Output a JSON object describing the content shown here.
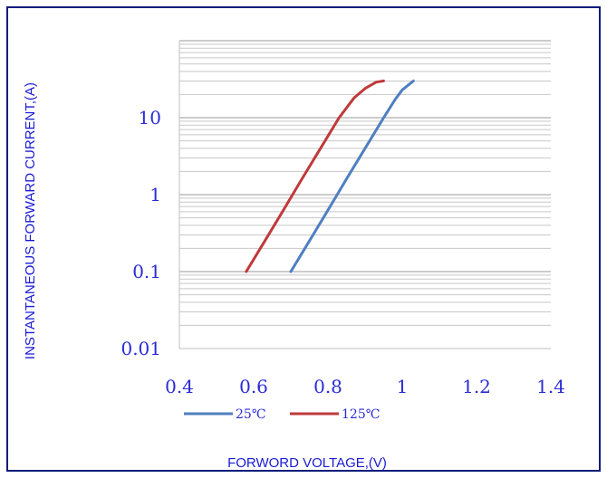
{
  "chart_data": {
    "type": "line",
    "title": "",
    "xlabel": "FORWORD VOLTAGE,(V)",
    "ylabel": "INSTANTANEOUS FORWARD CURRENT,(A)",
    "xlim": [
      0.4,
      1.4
    ],
    "ylim": [
      0.01,
      100
    ],
    "yscale": "log",
    "grid": "horizontal minor + major",
    "legend_position": "bottom",
    "x_ticks": [
      "0.4",
      "0.6",
      "0.8",
      "1",
      "1.2",
      "1.4"
    ],
    "y_ticks": [
      "0.01",
      "0.1",
      "1",
      "10"
    ],
    "series": [
      {
        "name": "25℃",
        "color": "#4f7fbf",
        "x": [
          0.7,
          0.75,
          0.8,
          0.85,
          0.9,
          0.95,
          0.98,
          1.0,
          1.03
        ],
        "y": [
          0.1,
          0.25,
          0.63,
          1.6,
          4.0,
          10.0,
          17.0,
          23.0,
          30.0
        ]
      },
      {
        "name": "125℃",
        "color": "#c0393b",
        "x": [
          0.58,
          0.63,
          0.68,
          0.73,
          0.78,
          0.83,
          0.87,
          0.9,
          0.93,
          0.95
        ],
        "y": [
          0.1,
          0.25,
          0.63,
          1.6,
          4.0,
          10.0,
          18.0,
          24.0,
          29.0,
          30.0
        ]
      }
    ]
  }
}
